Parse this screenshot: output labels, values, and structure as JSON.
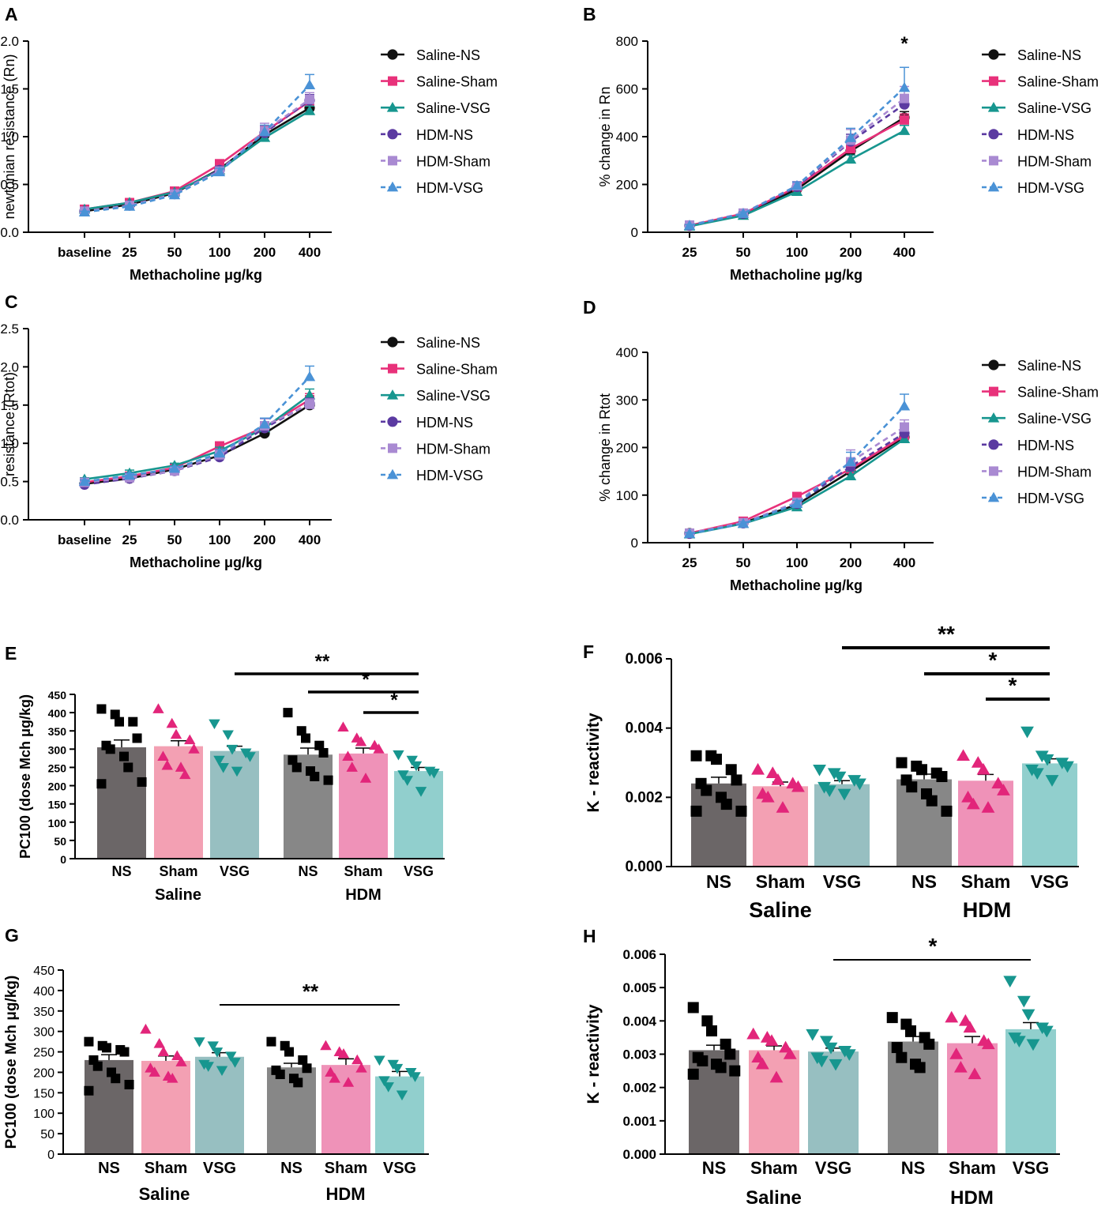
{
  "colors": {
    "Saline-NS": "#111111",
    "Saline-Sham": "#e8317a",
    "Saline-VSG": "#17968f",
    "HDM-NS": "#5b3aa1",
    "HDM-Sham": "#a98ad2",
    "HDM-VSG": "#4a92d6",
    "bar_NS_saline": "#6b6667",
    "bar_Sham_saline": "#f3a0b3",
    "bar_VSG_saline": "#97bfc1",
    "bar_NS_hdm": "#878787",
    "bar_Sham_hdm": "#ef92b8",
    "bar_VSG_hdm": "#91cfcd"
  },
  "legend_entries": [
    "Saline-NS",
    "Saline-Sham",
    "Saline-VSG",
    "HDM-NS",
    "HDM-Sham",
    "HDM-VSG"
  ],
  "chart_data": [
    {
      "panel": "A",
      "type": "line",
      "xlabel": "Methacholine μg/kg",
      "ylabel": "newtonian resistance (Rn)",
      "categories": [
        "baseline",
        "25",
        "50",
        "100",
        "200",
        "400"
      ],
      "ylim": [
        0,
        2.0
      ],
      "yticks": [
        "0.0",
        "0.5",
        "1.0",
        "1.5",
        "2.0"
      ],
      "series": [
        {
          "name": "Saline-NS",
          "values": [
            0.22,
            0.29,
            0.41,
            0.66,
            1.02,
            1.3
          ],
          "err": [
            0.01,
            0.01,
            0.02,
            0.04,
            0.05,
            0.05
          ]
        },
        {
          "name": "Saline-Sham",
          "values": [
            0.24,
            0.31,
            0.43,
            0.71,
            1.05,
            1.37
          ],
          "err": [
            0.01,
            0.01,
            0.02,
            0.05,
            0.06,
            0.07
          ]
        },
        {
          "name": "Saline-VSG",
          "values": [
            0.24,
            0.31,
            0.42,
            0.65,
            0.99,
            1.27
          ],
          "err": [
            0.01,
            0.01,
            0.02,
            0.04,
            0.05,
            0.05
          ]
        },
        {
          "name": "HDM-NS",
          "values": [
            0.22,
            0.28,
            0.4,
            0.65,
            1.04,
            1.38
          ],
          "err": [
            0.01,
            0.01,
            0.02,
            0.04,
            0.06,
            0.06
          ]
        },
        {
          "name": "HDM-Sham",
          "values": [
            0.22,
            0.28,
            0.4,
            0.64,
            1.06,
            1.39
          ],
          "err": [
            0.01,
            0.01,
            0.02,
            0.04,
            0.08,
            0.07
          ]
        },
        {
          "name": "HDM-VSG",
          "values": [
            0.21,
            0.27,
            0.39,
            0.63,
            1.05,
            1.54
          ],
          "err": [
            0.01,
            0.01,
            0.02,
            0.04,
            0.07,
            0.11
          ]
        }
      ]
    },
    {
      "panel": "B",
      "type": "line",
      "xlabel": "Methacholine μg/kg",
      "ylabel": "% change in Rn",
      "categories": [
        "25",
        "50",
        "100",
        "200",
        "400"
      ],
      "ylim": [
        0,
        800
      ],
      "yticks": [
        "0",
        "200",
        "400",
        "600",
        "800"
      ],
      "annotation": "*",
      "series": [
        {
          "name": "Saline-NS",
          "values": [
            28,
            75,
            180,
            340,
            480
          ],
          "err": [
            3,
            6,
            12,
            20,
            25
          ]
        },
        {
          "name": "Saline-Sham",
          "values": [
            28,
            78,
            190,
            350,
            470
          ],
          "err": [
            3,
            6,
            14,
            22,
            25
          ]
        },
        {
          "name": "Saline-VSG",
          "values": [
            25,
            70,
            170,
            305,
            425
          ],
          "err": [
            3,
            6,
            12,
            18,
            22
          ]
        },
        {
          "name": "HDM-NS",
          "values": [
            28,
            78,
            190,
            380,
            535
          ],
          "err": [
            3,
            6,
            14,
            30,
            40
          ]
        },
        {
          "name": "HDM-Sham",
          "values": [
            30,
            80,
            195,
            385,
            560
          ],
          "err": [
            4,
            7,
            15,
            45,
            50
          ]
        },
        {
          "name": "HDM-VSG",
          "values": [
            28,
            78,
            195,
            395,
            605
          ],
          "err": [
            4,
            7,
            15,
            40,
            85
          ]
        }
      ]
    },
    {
      "panel": "C",
      "type": "line",
      "xlabel": "Methacholine μg/kg",
      "ylabel": "resistance (Rtot)",
      "categories": [
        "baseline",
        "25",
        "50",
        "100",
        "200",
        "400"
      ],
      "ylim": [
        0,
        2.5
      ],
      "yticks": [
        "0.0",
        "0.5",
        "1.0",
        "1.5",
        "2.0",
        "2.5"
      ],
      "series": [
        {
          "name": "Saline-NS",
          "values": [
            0.47,
            0.54,
            0.66,
            0.84,
            1.13,
            1.5
          ],
          "err": [
            0.02,
            0.03,
            0.03,
            0.04,
            0.05,
            0.06
          ]
        },
        {
          "name": "Saline-Sham",
          "values": [
            0.49,
            0.57,
            0.68,
            0.96,
            1.21,
            1.57
          ],
          "err": [
            0.02,
            0.03,
            0.03,
            0.06,
            0.07,
            0.08
          ]
        },
        {
          "name": "Saline-VSG",
          "values": [
            0.53,
            0.61,
            0.71,
            0.9,
            1.2,
            1.63
          ],
          "err": [
            0.02,
            0.04,
            0.03,
            0.05,
            0.06,
            0.08
          ]
        },
        {
          "name": "HDM-NS",
          "values": [
            0.46,
            0.54,
            0.64,
            0.82,
            1.2,
            1.52
          ],
          "err": [
            0.02,
            0.03,
            0.03,
            0.04,
            0.06,
            0.07
          ]
        },
        {
          "name": "HDM-Sham",
          "values": [
            0.49,
            0.55,
            0.64,
            0.85,
            1.23,
            1.51
          ],
          "err": [
            0.02,
            0.03,
            0.03,
            0.05,
            0.09,
            0.07
          ]
        },
        {
          "name": "HDM-VSG",
          "values": [
            0.5,
            0.58,
            0.67,
            0.87,
            1.25,
            1.87
          ],
          "err": [
            0.02,
            0.03,
            0.03,
            0.05,
            0.08,
            0.14
          ]
        }
      ]
    },
    {
      "panel": "D",
      "type": "line",
      "xlabel": "Methacholine μg/kg",
      "ylabel": "% change in Rtot",
      "categories": [
        "25",
        "50",
        "100",
        "200",
        "400"
      ],
      "ylim": [
        0,
        400
      ],
      "yticks": [
        "0",
        "100",
        "200",
        "300",
        "400"
      ],
      "series": [
        {
          "name": "Saline-NS",
          "values": [
            20,
            42,
            80,
            150,
            222
          ],
          "err": [
            2,
            4,
            6,
            10,
            12
          ]
        },
        {
          "name": "Saline-Sham",
          "values": [
            20,
            45,
            97,
            155,
            225
          ],
          "err": [
            2,
            4,
            8,
            12,
            14
          ]
        },
        {
          "name": "Saline-VSG",
          "values": [
            18,
            40,
            75,
            140,
            218
          ],
          "err": [
            2,
            4,
            6,
            10,
            12
          ]
        },
        {
          "name": "HDM-NS",
          "values": [
            19,
            41,
            82,
            160,
            230
          ],
          "err": [
            2,
            4,
            7,
            14,
            15
          ]
        },
        {
          "name": "HDM-Sham",
          "values": [
            20,
            42,
            85,
            170,
            243
          ],
          "err": [
            2,
            4,
            7,
            25,
            15
          ]
        },
        {
          "name": "HDM-VSG",
          "values": [
            19,
            40,
            82,
            170,
            287
          ],
          "err": [
            2,
            4,
            7,
            20,
            25
          ]
        }
      ]
    },
    {
      "panel": "E",
      "type": "bar",
      "ylabel": "PC100 (dose Mch μg/kg)",
      "ylim": [
        0,
        450
      ],
      "yticks": [
        "0",
        "50",
        "100",
        "150",
        "200",
        "250",
        "300",
        "350",
        "400",
        "450"
      ],
      "categories": [
        "NS",
        "Sham",
        "VSG",
        "NS",
        "Sham",
        "VSG"
      ],
      "groups": [
        "Saline",
        "HDM"
      ],
      "values": [
        305,
        308,
        295,
        285,
        288,
        240
      ],
      "sem": [
        20,
        15,
        13,
        18,
        15,
        10
      ],
      "points": [
        [
          410,
          395,
          375,
          375,
          330,
          310,
          300,
          280,
          250,
          210,
          205
        ],
        [
          410,
          370,
          340,
          325,
          300,
          280,
          255,
          250,
          230
        ],
        [
          370,
          340,
          300,
          290,
          280,
          270,
          250,
          240
        ],
        [
          400,
          350,
          330,
          310,
          290,
          270,
          250,
          240,
          225,
          215
        ],
        [
          360,
          330,
          320,
          310,
          300,
          280,
          250,
          220
        ],
        [
          285,
          270,
          255,
          240,
          235,
          230,
          215,
          185
        ]
      ],
      "significance": [
        {
          "from": 2,
          "to": 5,
          "label": "**"
        },
        {
          "from": 3,
          "to": 5,
          "label": "*"
        },
        {
          "from": 4,
          "to": 5,
          "label": "*"
        }
      ]
    },
    {
      "panel": "F",
      "type": "bar",
      "ylabel": "K - reactivity",
      "ylim": [
        0,
        0.006
      ],
      "yticks": [
        "0.000",
        "0.002",
        "0.004",
        "0.006"
      ],
      "categories": [
        "NS",
        "Sham",
        "VSG",
        "NS",
        "Sham",
        "VSG"
      ],
      "groups": [
        "Saline",
        "HDM"
      ],
      "values": [
        0.0024,
        0.00232,
        0.00238,
        0.00252,
        0.00248,
        0.00298
      ],
      "sem": [
        0.00018,
        0.00012,
        0.0001,
        0.00015,
        0.00018,
        0.00013
      ],
      "points": [
        [
          0.0032,
          0.0032,
          0.0031,
          0.0028,
          0.0025,
          0.0024,
          0.0022,
          0.002,
          0.0018,
          0.0016,
          0.0016
        ],
        [
          0.0028,
          0.0027,
          0.0025,
          0.0024,
          0.0023,
          0.0021,
          0.002,
          0.0017
        ],
        [
          0.0028,
          0.0027,
          0.0026,
          0.0025,
          0.0024,
          0.0023,
          0.0022,
          0.0021
        ],
        [
          0.003,
          0.0029,
          0.0028,
          0.0027,
          0.0026,
          0.0025,
          0.0023,
          0.0021,
          0.0019,
          0.0016
        ],
        [
          0.0032,
          0.003,
          0.0028,
          0.0024,
          0.0022,
          0.002,
          0.0018,
          0.0017
        ],
        [
          0.0039,
          0.0032,
          0.0031,
          0.003,
          0.0029,
          0.0028,
          0.0027,
          0.0025
        ]
      ],
      "significance": [
        {
          "from": 2,
          "to": 5,
          "label": "**"
        },
        {
          "from": 3,
          "to": 5,
          "label": "*"
        },
        {
          "from": 4,
          "to": 5,
          "label": "*"
        }
      ]
    },
    {
      "panel": "G",
      "type": "bar",
      "ylabel": "PC100 (dose Mch μg/kg)",
      "ylim": [
        0,
        450
      ],
      "yticks": [
        "0",
        "50",
        "100",
        "150",
        "200",
        "250",
        "300",
        "350",
        "400",
        "450"
      ],
      "categories": [
        "NS",
        "Sham",
        "VSG",
        "NS",
        "Sham",
        "VSG"
      ],
      "groups": [
        "Saline",
        "HDM"
      ],
      "values": [
        230,
        228,
        238,
        212,
        218,
        190
      ],
      "sem": [
        13,
        12,
        10,
        10,
        15,
        12
      ],
      "points": [
        [
          275,
          265,
          260,
          255,
          250,
          230,
          215,
          200,
          185,
          170,
          155
        ],
        [
          305,
          270,
          250,
          240,
          225,
          210,
          200,
          190,
          185
        ],
        [
          275,
          265,
          250,
          240,
          225,
          220,
          215,
          205
        ],
        [
          275,
          265,
          250,
          230,
          210,
          205,
          195,
          185,
          175
        ],
        [
          265,
          250,
          245,
          230,
          210,
          200,
          185,
          175
        ],
        [
          230,
          220,
          210,
          200,
          190,
          180,
          165,
          145
        ]
      ],
      "significance": [
        {
          "from": 2,
          "to": 5,
          "label": "**"
        }
      ]
    },
    {
      "panel": "H",
      "type": "bar",
      "ylabel": "K - reactivity",
      "ylim": [
        0,
        0.006
      ],
      "yticks": [
        "0.000",
        "0.001",
        "0.002",
        "0.003",
        "0.004",
        "0.005",
        "0.006"
      ],
      "categories": [
        "NS",
        "Sham",
        "VSG",
        "NS",
        "Sham",
        "VSG"
      ],
      "groups": [
        "Saline",
        "HDM"
      ],
      "values": [
        0.00312,
        0.00312,
        0.00308,
        0.00338,
        0.00333,
        0.00375
      ],
      "sem": [
        0.00015,
        0.00013,
        0.0001,
        0.00015,
        0.0002,
        0.0002
      ],
      "points": [
        [
          0.0044,
          0.004,
          0.0037,
          0.0033,
          0.003,
          0.0029,
          0.0028,
          0.0027,
          0.0026,
          0.0025,
          0.0024
        ],
        [
          0.0036,
          0.0035,
          0.0034,
          0.0032,
          0.003,
          0.0029,
          0.0027,
          0.0023
        ],
        [
          0.0036,
          0.0034,
          0.0032,
          0.0031,
          0.003,
          0.0029,
          0.0028,
          0.0027
        ],
        [
          0.0041,
          0.0039,
          0.0037,
          0.0035,
          0.0033,
          0.0032,
          0.0029,
          0.0027,
          0.0026
        ],
        [
          0.0041,
          0.004,
          0.0038,
          0.0034,
          0.0033,
          0.003,
          0.0026,
          0.0024
        ],
        [
          0.0052,
          0.0046,
          0.0042,
          0.0038,
          0.0037,
          0.0035,
          0.0034,
          0.0033
        ]
      ],
      "significance": [
        {
          "from": 2,
          "to": 5,
          "label": "*"
        }
      ]
    }
  ]
}
